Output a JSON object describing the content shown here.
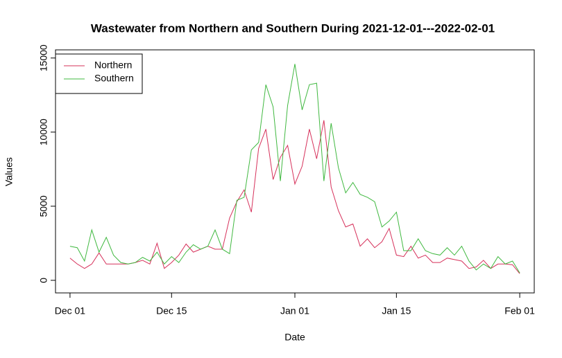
{
  "chart_data": {
    "type": "line",
    "title": "Wastewater from Northern and Southern During 2021-12-01---2022-02-01",
    "x_label": "Date",
    "y_label": "Values",
    "x": [
      "2021-12-01",
      "2021-12-02",
      "2021-12-03",
      "2021-12-04",
      "2021-12-05",
      "2021-12-06",
      "2021-12-07",
      "2021-12-08",
      "2021-12-09",
      "2021-12-10",
      "2021-12-11",
      "2021-12-12",
      "2021-12-13",
      "2021-12-14",
      "2021-12-15",
      "2021-12-16",
      "2021-12-17",
      "2021-12-18",
      "2021-12-19",
      "2021-12-20",
      "2021-12-21",
      "2021-12-22",
      "2021-12-23",
      "2021-12-24",
      "2021-12-25",
      "2021-12-26",
      "2021-12-27",
      "2021-12-28",
      "2021-12-29",
      "2021-12-30",
      "2021-12-31",
      "2022-01-01",
      "2022-01-02",
      "2022-01-03",
      "2022-01-04",
      "2022-01-05",
      "2022-01-06",
      "2022-01-07",
      "2022-01-08",
      "2022-01-09",
      "2022-01-10",
      "2022-01-11",
      "2022-01-12",
      "2022-01-13",
      "2022-01-14",
      "2022-01-15",
      "2022-01-16",
      "2022-01-17",
      "2022-01-18",
      "2022-01-19",
      "2022-01-20",
      "2022-01-21",
      "2022-01-22",
      "2022-01-23",
      "2022-01-24",
      "2022-01-25",
      "2022-01-26",
      "2022-01-27",
      "2022-01-28",
      "2022-01-29",
      "2022-01-30",
      "2022-01-31",
      "2022-02-01"
    ],
    "series": [
      {
        "name": "Northern",
        "color": "#d6305a",
        "values": [
          1500,
          1100,
          800,
          1100,
          1850,
          1100,
          1100,
          1100,
          1100,
          1200,
          1350,
          1100,
          2500,
          800,
          1200,
          1700,
          2450,
          1900,
          2100,
          2300,
          2100,
          2100,
          4200,
          5300,
          6100,
          4600,
          8900,
          10200,
          6800,
          8300,
          9100,
          6500,
          7700,
          10200,
          8200,
          10800,
          6300,
          4700,
          3600,
          3800,
          2300,
          2800,
          2200,
          2600,
          3500,
          1700,
          1600,
          2300,
          1500,
          1700,
          1200,
          1200,
          1500,
          1400,
          1300,
          800,
          900,
          1350,
          800,
          1100,
          1100,
          1050,
          450
        ]
      },
      {
        "name": "Southern",
        "color": "#3fb83f",
        "values": [
          2300,
          2200,
          1300,
          3400,
          1900,
          2900,
          1700,
          1200,
          1100,
          1200,
          1550,
          1300,
          1900,
          1100,
          1600,
          1200,
          1900,
          2400,
          2100,
          2300,
          3400,
          2100,
          1800,
          5400,
          5600,
          8800,
          9300,
          13200,
          11700,
          6700,
          11800,
          14600,
          11500,
          13200,
          13300,
          6700,
          10600,
          7600,
          5900,
          6600,
          5800,
          5600,
          5300,
          3600,
          4000,
          4600,
          2000,
          2000,
          2800,
          2000,
          1800,
          1700,
          2200,
          1700,
          2300,
          1300,
          700,
          1100,
          800,
          1600,
          1100,
          1300,
          500
        ]
      }
    ],
    "xlim": [
      "2021-11-29",
      "2022-02-03"
    ],
    "xticks": [
      {
        "value": "2021-12-01",
        "label": "Dec 01"
      },
      {
        "value": "2021-12-15",
        "label": "Dec 15"
      },
      {
        "value": "2022-01-01",
        "label": "Jan 01"
      },
      {
        "value": "2022-01-15",
        "label": "Jan 15"
      },
      {
        "value": "2022-02-01",
        "label": "Feb 01"
      }
    ],
    "ylim": [
      -850,
      15550
    ],
    "yticks": [
      0,
      5000,
      10000,
      15000
    ],
    "legend": "top-left"
  }
}
